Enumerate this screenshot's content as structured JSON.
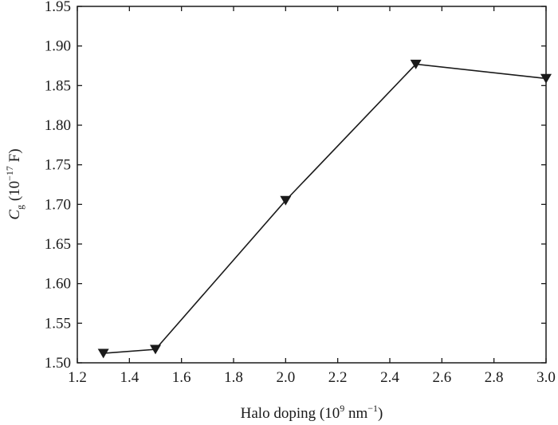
{
  "chart_data": {
    "type": "line",
    "x": [
      1.3,
      1.5,
      2.0,
      2.5,
      3.0
    ],
    "series": [
      {
        "values": [
          1.512,
          1.517,
          1.705,
          1.877,
          1.859
        ]
      }
    ],
    "xlim": [
      1.2,
      3.0
    ],
    "ylim": [
      1.5,
      1.95
    ],
    "x_ticks": [
      "1.2",
      "1.4",
      "1.6",
      "1.8",
      "2.0",
      "2.2",
      "2.4",
      "2.6",
      "2.8",
      "3.0"
    ],
    "y_ticks": [
      "1.50",
      "1.55",
      "1.60",
      "1.65",
      "1.70",
      "1.75",
      "1.80",
      "1.85",
      "1.90",
      "1.95"
    ],
    "xlabel": {
      "main": "Halo doping (10",
      "sup1": "9",
      "mid": " nm",
      "sup2": "−1",
      "end": ")"
    },
    "ylabel": {
      "symbol": "C",
      "sub": "g",
      "pre": " (10",
      "sup": "−17",
      "post": " F)"
    },
    "marker": "triangle-down",
    "grid": false,
    "color": "#1a1a1a"
  }
}
